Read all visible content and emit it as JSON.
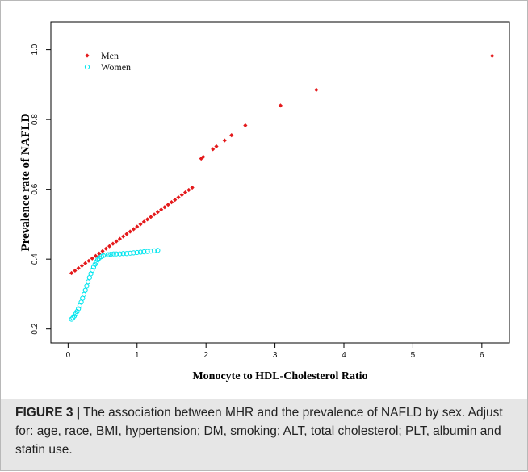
{
  "chart_data": {
    "type": "scatter",
    "title": "",
    "xlabel": "Monocyte to HDL-Cholesterol Ratio",
    "ylabel": "Prevalence rate of NAFLD",
    "xlim": [
      -0.25,
      6.4
    ],
    "ylim": [
      0.16,
      1.08
    ],
    "x_ticks": [
      0,
      1,
      2,
      3,
      4,
      5,
      6
    ],
    "y_ticks": [
      0.2,
      0.4,
      0.6,
      0.8,
      1.0
    ],
    "x_tick_labels": [
      "0",
      "1",
      "2",
      "3",
      "4",
      "5",
      "6"
    ],
    "y_tick_labels": [
      "0.2",
      "0.4",
      "0.6",
      "0.8",
      "1.0"
    ],
    "grid": false,
    "legend_position": "top-left",
    "series": [
      {
        "name": "Men",
        "color": "#e41a1c",
        "marker": "filled-diamond",
        "points": [
          [
            0.05,
            0.36
          ],
          [
            0.1,
            0.367
          ],
          [
            0.15,
            0.374
          ],
          [
            0.2,
            0.381
          ],
          [
            0.25,
            0.388
          ],
          [
            0.3,
            0.395
          ],
          [
            0.35,
            0.402
          ],
          [
            0.4,
            0.409
          ],
          [
            0.45,
            0.416
          ],
          [
            0.5,
            0.423
          ],
          [
            0.55,
            0.43
          ],
          [
            0.6,
            0.437
          ],
          [
            0.65,
            0.444
          ],
          [
            0.7,
            0.451
          ],
          [
            0.75,
            0.458
          ],
          [
            0.8,
            0.465
          ],
          [
            0.85,
            0.472
          ],
          [
            0.9,
            0.479
          ],
          [
            0.95,
            0.486
          ],
          [
            1.0,
            0.493
          ],
          [
            1.05,
            0.5
          ],
          [
            1.1,
            0.507
          ],
          [
            1.15,
            0.514
          ],
          [
            1.2,
            0.521
          ],
          [
            1.25,
            0.528
          ],
          [
            1.3,
            0.535
          ],
          [
            1.35,
            0.542
          ],
          [
            1.4,
            0.549
          ],
          [
            1.45,
            0.556
          ],
          [
            1.5,
            0.563
          ],
          [
            1.55,
            0.57
          ],
          [
            1.6,
            0.577
          ],
          [
            1.65,
            0.584
          ],
          [
            1.7,
            0.591
          ],
          [
            1.75,
            0.598
          ],
          [
            1.8,
            0.605
          ],
          [
            1.93,
            0.688
          ],
          [
            1.96,
            0.693
          ],
          [
            2.1,
            0.715
          ],
          [
            2.15,
            0.723
          ],
          [
            2.27,
            0.74
          ],
          [
            2.37,
            0.755
          ],
          [
            2.57,
            0.783
          ],
          [
            3.08,
            0.84
          ],
          [
            3.6,
            0.885
          ],
          [
            6.15,
            0.982
          ]
        ]
      },
      {
        "name": "Women",
        "color": "#00e5ee",
        "marker": "open-circle",
        "points": [
          [
            0.05,
            0.228
          ],
          [
            0.07,
            0.232
          ],
          [
            0.09,
            0.237
          ],
          [
            0.11,
            0.243
          ],
          [
            0.13,
            0.25
          ],
          [
            0.15,
            0.258
          ],
          [
            0.17,
            0.267
          ],
          [
            0.19,
            0.277
          ],
          [
            0.21,
            0.288
          ],
          [
            0.23,
            0.299
          ],
          [
            0.25,
            0.311
          ],
          [
            0.27,
            0.323
          ],
          [
            0.29,
            0.335
          ],
          [
            0.31,
            0.347
          ],
          [
            0.33,
            0.358
          ],
          [
            0.35,
            0.368
          ],
          [
            0.37,
            0.377
          ],
          [
            0.39,
            0.385
          ],
          [
            0.41,
            0.392
          ],
          [
            0.43,
            0.398
          ],
          [
            0.45,
            0.403
          ],
          [
            0.48,
            0.407
          ],
          [
            0.51,
            0.41
          ],
          [
            0.54,
            0.412
          ],
          [
            0.58,
            0.413
          ],
          [
            0.62,
            0.414
          ],
          [
            0.66,
            0.415
          ],
          [
            0.7,
            0.415
          ],
          [
            0.75,
            0.415
          ],
          [
            0.8,
            0.416
          ],
          [
            0.85,
            0.416
          ],
          [
            0.9,
            0.417
          ],
          [
            0.95,
            0.418
          ],
          [
            1.0,
            0.419
          ],
          [
            1.05,
            0.42
          ],
          [
            1.1,
            0.421
          ],
          [
            1.15,
            0.422
          ],
          [
            1.2,
            0.423
          ],
          [
            1.25,
            0.424
          ],
          [
            1.3,
            0.425
          ]
        ]
      }
    ]
  },
  "caption": {
    "label": "FIGURE 3 |",
    "text": "The association between MHR and the prevalence of NAFLD by sex. Adjust for: age, race, BMI, hypertension; DM, smoking; ALT, total cholesterol; PLT, albumin and statin use."
  }
}
